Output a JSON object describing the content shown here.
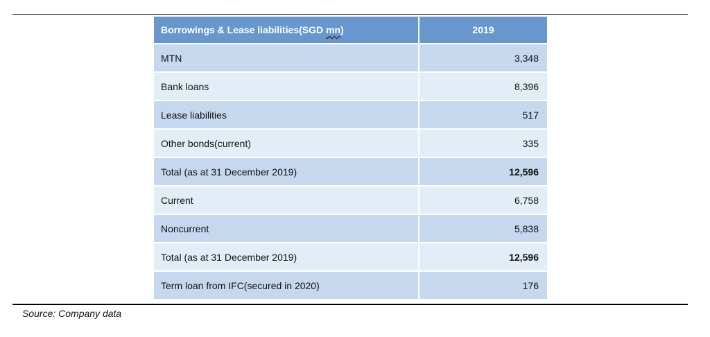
{
  "table": {
    "header": {
      "label_prefix": "Borrowings & Lease liabilities(SGD ",
      "label_unit": "mn",
      "label_suffix": ")",
      "year": "2019"
    },
    "rows": [
      {
        "label": "MTN",
        "value": "3,348",
        "bold": false,
        "shade": "dark"
      },
      {
        "label": "Bank loans",
        "value": "8,396",
        "bold": false,
        "shade": "light"
      },
      {
        "label": "Lease liabilities",
        "value": "517",
        "bold": false,
        "shade": "dark"
      },
      {
        "label": "Other bonds(current)",
        "value": "335",
        "bold": false,
        "shade": "light"
      },
      {
        "label": "Total (as at 31 December 2019)",
        "value": "12,596",
        "bold": true,
        "shade": "dark"
      },
      {
        "label": "Current",
        "value": "6,758",
        "bold": false,
        "shade": "light"
      },
      {
        "label": "Noncurrent",
        "value": "5,838",
        "bold": false,
        "shade": "dark"
      },
      {
        "label": "Total (as at 31 December 2019)",
        "value": "12,596",
        "bold": true,
        "shade": "light"
      },
      {
        "label": "Term loan from IFC(secured in 2020)",
        "value": "176",
        "bold": false,
        "shade": "dark"
      }
    ]
  },
  "source": "Source: Company data",
  "colors": {
    "header_bg": "#6797cd",
    "row_dark": "#c5d8ee",
    "row_light": "#e3edf7"
  }
}
